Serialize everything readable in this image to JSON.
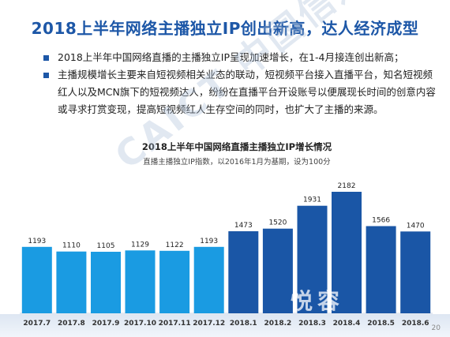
{
  "slide": {
    "title": "2018上半年网络主播独立IP创出新高，达人经济成型",
    "bullets": [
      "2018上半年中国网络直播的主播独立IP呈现加速增长，在1-4月接连创出新高；",
      "主播规模增长主要来自短视频相关业态的联动，短视频平台接入直播平台，知名短视频红人以及MCN旗下的短视频达人，纷纷在直播平台开设账号以便展现长时间的创意内容或寻求打赏变现，提高短视频红人生存空间的同时，也扩大了主播的来源。"
    ],
    "page_number": "20",
    "watermark": "CAICT 中国信通",
    "logo_text": "悦容"
  },
  "colors": {
    "title": "#1d57a7",
    "bar_light": "#1a9be2",
    "bar_dark": "#1a56a6",
    "bullet_square": "#1d57a7"
  },
  "chart_data": {
    "type": "bar",
    "title": "2018上半年中国网络直播主播独立IP增长情况",
    "subtitle": "直播主播独立IP指数，以2016年1月为基期，设为100分",
    "categories": [
      "2017.7",
      "2017.8",
      "2017.9",
      "2017.10",
      "2017.11",
      "2017.12",
      "2018.1",
      "2018.2",
      "2018.3",
      "2018.4",
      "2018.5",
      "2018.6"
    ],
    "values": [
      1193,
      1110,
      1105,
      1129,
      1122,
      1193,
      1473,
      1520,
      1931,
      2182,
      1566,
      1470
    ],
    "highlight_from_index": 6,
    "xlabel": "",
    "ylabel": "",
    "grid": false,
    "legend": "none"
  }
}
